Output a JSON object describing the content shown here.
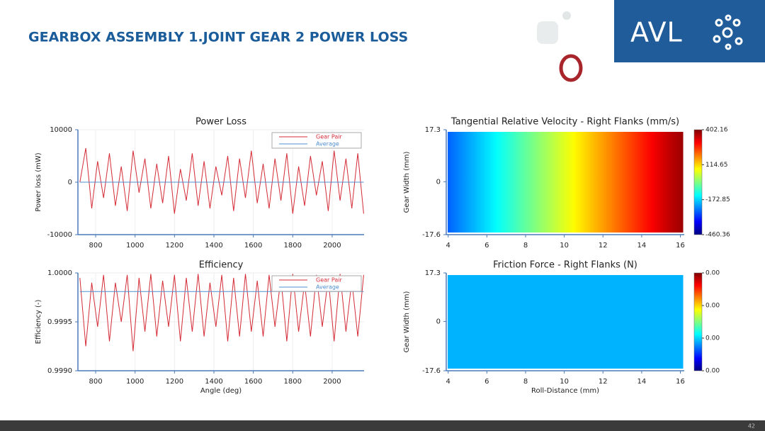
{
  "title": "GEARBOX ASSEMBLY 1.JOINT GEAR 2 POWER LOSS",
  "logo": "AVL",
  "page_number": "42",
  "chart_data": [
    {
      "type": "line",
      "title": "Power Loss",
      "ylabel": "Power loss (mW)",
      "x": [
        720,
        750,
        780,
        810,
        840,
        870,
        900,
        930,
        960,
        990,
        1020,
        1050,
        1080,
        1110,
        1140,
        1170,
        1200,
        1230,
        1260,
        1290,
        1320,
        1350,
        1380,
        1410,
        1440,
        1470,
        1500,
        1530,
        1560,
        1590,
        1620,
        1650,
        1680,
        1710,
        1740,
        1770,
        1800,
        1830,
        1860,
        1890,
        1920,
        1950,
        1980,
        2010,
        2040,
        2070,
        2100,
        2130,
        2160
      ],
      "series": [
        {
          "name": "Gear Pair",
          "color": "#d42b36",
          "values": [
            0,
            6500,
            -5000,
            4000,
            -3000,
            5500,
            -4500,
            3000,
            -5500,
            6000,
            -2000,
            4500,
            -5000,
            3500,
            -4000,
            5000,
            -6000,
            2500,
            -3500,
            5500,
            -4500,
            4000,
            -5000,
            3000,
            -2500,
            5000,
            -5500,
            4500,
            -3000,
            6000,
            -4000,
            3500,
            -5000,
            4500,
            -3500,
            5500,
            -6000,
            3000,
            -4500,
            5000,
            -2500,
            4000,
            -5500,
            6000,
            -3500,
            4500,
            -5000,
            5500,
            -6000
          ]
        },
        {
          "name": "Average",
          "color": "#4f8fd0",
          "x": [
            720,
            2160
          ],
          "values": [
            0,
            0
          ]
        }
      ],
      "xlim": [
        710,
        2162
      ],
      "xticks": [
        800,
        1000,
        1200,
        1400,
        1600,
        1800,
        2000
      ],
      "ylim": [
        -10000,
        10000
      ],
      "yticks": [
        -10000,
        0,
        10000
      ],
      "grid": true,
      "legend": "top-right"
    },
    {
      "type": "line",
      "title": "Efficiency",
      "ylabel": "Efficiency (-)",
      "xlabel": "Angle (deg)",
      "x": [
        720,
        750,
        780,
        810,
        840,
        870,
        900,
        930,
        960,
        990,
        1020,
        1050,
        1080,
        1110,
        1140,
        1170,
        1200,
        1230,
        1260,
        1290,
        1320,
        1350,
        1380,
        1410,
        1440,
        1470,
        1500,
        1530,
        1560,
        1590,
        1620,
        1650,
        1680,
        1710,
        1740,
        1770,
        1800,
        1830,
        1860,
        1890,
        1920,
        1950,
        1980,
        2010,
        2040,
        2070,
        2100,
        2130,
        2160
      ],
      "series": [
        {
          "name": "Gear Pair",
          "color": "#d42b36",
          "values": [
            0.99995,
            0.99925,
            0.9999,
            0.99945,
            0.99998,
            0.9993,
            0.9999,
            0.9995,
            0.99998,
            0.9992,
            0.99995,
            0.9994,
            0.99999,
            0.99935,
            0.99992,
            0.99945,
            0.99998,
            0.9993,
            0.99995,
            0.9994,
            0.99999,
            0.99935,
            0.9999,
            0.99945,
            0.99998,
            0.9993,
            0.99995,
            0.99935,
            0.99999,
            0.9994,
            0.99992,
            0.99935,
            0.99998,
            0.99945,
            0.99995,
            0.9993,
            0.99999,
            0.9994,
            0.9999,
            0.99935,
            0.99998,
            0.99945,
            0.99995,
            0.9993,
            0.99999,
            0.9994,
            0.99992,
            0.99935,
            0.99998
          ]
        },
        {
          "name": "Average",
          "color": "#4f8fd0",
          "x": [
            720,
            2160
          ],
          "values": [
            0.99981,
            0.99981
          ]
        }
      ],
      "xlim": [
        710,
        2162
      ],
      "xticks": [
        800,
        1000,
        1200,
        1400,
        1600,
        1800,
        2000
      ],
      "ylim": [
        0.999,
        1
      ],
      "yticks": [
        {
          "value": 0.999,
          "label": "0.9990"
        },
        0.9995,
        {
          "value": 1,
          "label": "1.0000"
        }
      ],
      "grid": true,
      "legend": "top-right"
    },
    {
      "type": "heatmap",
      "title": "Tangential Relative Velocity - Right Flanks (mm/s)",
      "ylabel": "Gear Width (mm)",
      "x": [
        4,
        5,
        6,
        7,
        8,
        9,
        10,
        11,
        12,
        13,
        14,
        15,
        16
      ],
      "values": [
        -270,
        -216,
        -162,
        -108,
        -54,
        0,
        54,
        108,
        162,
        216,
        270,
        324,
        378
      ],
      "xlim": [
        3.9,
        16.2
      ],
      "xticks": [
        4,
        6,
        8,
        10,
        12,
        14,
        16
      ],
      "ylim": [
        -17.6,
        17.3
      ],
      "yticks": [
        -17.6,
        0,
        17.3
      ],
      "clim": [
        -460.36,
        402.16
      ],
      "cticks": [
        -460.36,
        -172.85,
        114.65,
        402.16
      ],
      "colormap": "jet"
    },
    {
      "type": "heatmap",
      "title": "Friction Force - Right Flanks (N)",
      "ylabel": "Gear Width (mm)",
      "xlabel": "Roll-Distance (mm)",
      "x": [
        4,
        5,
        6,
        7,
        8,
        9,
        10,
        11,
        12,
        13,
        14,
        15,
        16
      ],
      "values": [
        0.0009,
        0.0009,
        0.0009,
        0.0009,
        0.0009,
        0.0009,
        0.0009,
        0.0009,
        0.0009,
        0.0009,
        0.0009,
        0.0009,
        0.0009
      ],
      "xlim": [
        3.9,
        16.2
      ],
      "xticks": [
        4,
        6,
        8,
        10,
        12,
        14,
        16
      ],
      "ylim": [
        -17.6,
        17.3
      ],
      "yticks": [
        -17.6,
        0,
        17.3
      ],
      "clim": [
        0,
        0.003
      ],
      "cticks": [
        {
          "value": 0,
          "label": "0.00"
        },
        {
          "value": 0.001,
          "label": "0.00"
        },
        {
          "value": 0.002,
          "label": "0.00"
        },
        {
          "value": 0.003,
          "label": "0.00"
        }
      ],
      "colormap": "jet"
    }
  ]
}
